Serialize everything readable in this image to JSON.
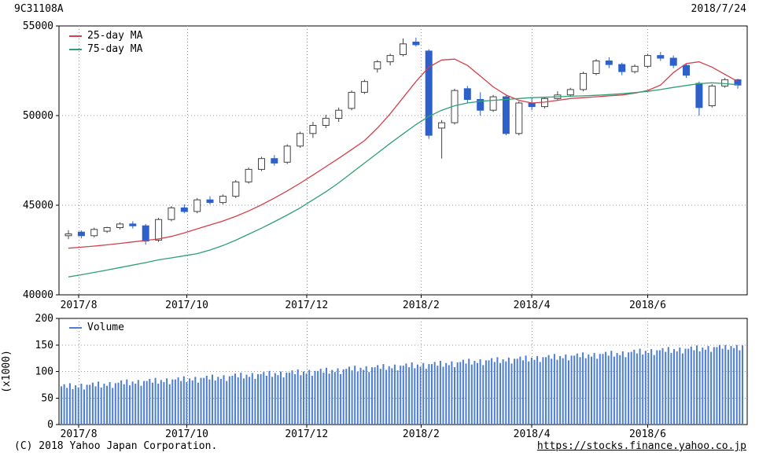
{
  "header": {
    "code": "9C31108A",
    "date": "2018/7/24"
  },
  "footer": {
    "copyright": "(C) 2018 Yahoo Japan Corporation.",
    "url": "https://stocks.finance.yahoo.co.jp"
  },
  "legend": {
    "ma25": "25-day MA",
    "ma75": "75-day MA",
    "volume": "Volume"
  },
  "colors": {
    "up_candle": "#ffffff",
    "candle_border": "#444444",
    "down_candle": "#2d60c8",
    "ma25": "#d2414c",
    "ma75": "#2fa173",
    "volume_bar": "#4d7ed2",
    "grid": "#999999",
    "axis": "#000000"
  },
  "chart_data": [
    {
      "type": "candlestick",
      "title": "Stock price with moving averages",
      "ylim": [
        40000,
        55000
      ],
      "y_ticks": [
        55000,
        50000,
        45000,
        40000
      ],
      "x_ticks": [
        "2017/8",
        "2017/10",
        "2017/12",
        "2018/2",
        "2018/4",
        "2018/6"
      ],
      "x_tick_weeks": [
        0.8,
        9.2,
        18.5,
        27.4,
        36.0,
        45.0
      ],
      "grid": true,
      "legend_position": "top-left",
      "candles": [
        [
          43300,
          43600,
          43100,
          43400
        ],
        [
          43500,
          43600,
          43150,
          43300
        ],
        [
          43300,
          43750,
          43200,
          43650
        ],
        [
          43550,
          43800,
          43450,
          43750
        ],
        [
          43750,
          44050,
          43650,
          43950
        ],
        [
          43950,
          44100,
          43700,
          43850
        ],
        [
          43850,
          43950,
          42800,
          43000
        ],
        [
          43050,
          44300,
          42950,
          44200
        ],
        [
          44200,
          44950,
          44100,
          44850
        ],
        [
          44850,
          45050,
          44550,
          44650
        ],
        [
          44650,
          45400,
          44550,
          45300
        ],
        [
          45300,
          45500,
          45050,
          45150
        ],
        [
          45150,
          45600,
          45050,
          45500
        ],
        [
          45500,
          46400,
          45400,
          46300
        ],
        [
          46300,
          47100,
          46200,
          47000
        ],
        [
          47000,
          47700,
          46900,
          47600
        ],
        [
          47600,
          47800,
          47200,
          47350
        ],
        [
          47400,
          48400,
          47300,
          48300
        ],
        [
          48300,
          49100,
          48200,
          49000
        ],
        [
          49000,
          49650,
          48750,
          49450
        ],
        [
          49450,
          50050,
          49300,
          49850
        ],
        [
          49850,
          50450,
          49650,
          50300
        ],
        [
          50400,
          51400,
          50300,
          51300
        ],
        [
          51300,
          52000,
          51200,
          51900
        ],
        [
          52600,
          53100,
          52400,
          53000
        ],
        [
          53000,
          53450,
          52800,
          53350
        ],
        [
          53400,
          54300,
          53300,
          54000
        ],
        [
          54100,
          54350,
          53850,
          53950
        ],
        [
          53600,
          53700,
          48700,
          48900
        ],
        [
          49300,
          49750,
          47600,
          49600
        ],
        [
          49600,
          51500,
          49500,
          51400
        ],
        [
          51500,
          51650,
          50700,
          50900
        ],
        [
          50900,
          51300,
          50000,
          50300
        ],
        [
          50300,
          51150,
          50200,
          51050
        ],
        [
          51050,
          51150,
          48900,
          49000
        ],
        [
          49000,
          50800,
          48900,
          50700
        ],
        [
          50700,
          51000,
          50300,
          50500
        ],
        [
          50500,
          51050,
          50400,
          50950
        ],
        [
          50950,
          51350,
          50850,
          51150
        ],
        [
          51150,
          51550,
          51050,
          51450
        ],
        [
          51450,
          52450,
          51350,
          52350
        ],
        [
          52350,
          53150,
          52250,
          53050
        ],
        [
          53050,
          53250,
          52650,
          52850
        ],
        [
          52850,
          52950,
          52250,
          52450
        ],
        [
          52450,
          52850,
          52350,
          52750
        ],
        [
          52750,
          53450,
          52650,
          53350
        ],
        [
          53350,
          53550,
          53050,
          53200
        ],
        [
          53200,
          53350,
          52650,
          52800
        ],
        [
          52800,
          52900,
          52100,
          52250
        ],
        [
          51800,
          51900,
          50000,
          50450
        ],
        [
          50550,
          51750,
          50450,
          51650
        ],
        [
          51650,
          52100,
          51550,
          52000
        ],
        [
          52000,
          52050,
          51500,
          51700
        ]
      ],
      "ma25": [
        42600,
        42660,
        42720,
        42790,
        42870,
        42950,
        43030,
        43120,
        43260,
        43450,
        43680,
        43900,
        44120,
        44380,
        44680,
        45020,
        45400,
        45800,
        46230,
        46680,
        47150,
        47620,
        48100,
        48600,
        49300,
        50100,
        51000,
        51900,
        52700,
        53100,
        53150,
        52800,
        52200,
        51600,
        51150,
        50850,
        50700,
        50750,
        50850,
        50950,
        51000,
        51050,
        51100,
        51150,
        51250,
        51400,
        51700,
        52400,
        52900,
        53000,
        52700,
        52300,
        51900
      ],
      "ma75": [
        41000,
        41120,
        41250,
        41380,
        41520,
        41660,
        41800,
        41950,
        42060,
        42180,
        42300,
        42500,
        42750,
        43050,
        43380,
        43720,
        44080,
        44450,
        44850,
        45300,
        45750,
        46250,
        46800,
        47350,
        47900,
        48450,
        48980,
        49500,
        49950,
        50300,
        50550,
        50700,
        50800,
        50850,
        50900,
        50950,
        51000,
        51020,
        51050,
        51080,
        51100,
        51130,
        51170,
        51220,
        51280,
        51350,
        51450,
        51570,
        51680,
        51780,
        51830,
        51780,
        51720
      ]
    },
    {
      "type": "bar",
      "name": "Volume",
      "ylabel": "(x1000)",
      "ylim": [
        0,
        200
      ],
      "y_ticks": [
        200,
        150,
        100,
        50,
        0
      ],
      "grid_ticks": [
        50,
        100,
        150
      ],
      "x_ticks": [
        "2017/8",
        "2017/10",
        "2017/12",
        "2018/2",
        "2018/4",
        "2018/6"
      ],
      "values": [
        72,
        76,
        69,
        78,
        67,
        74,
        70,
        77,
        66,
        75,
        75,
        79,
        72,
        81,
        70,
        77,
        73,
        80,
        69,
        78,
        79,
        83,
        76,
        85,
        74,
        81,
        77,
        84,
        73,
        82,
        82,
        86,
        79,
        88,
        77,
        84,
        80,
        87,
        76,
        85,
        85,
        89,
        82,
        91,
        80,
        87,
        83,
        90,
        79,
        88,
        88,
        92,
        85,
        94,
        83,
        90,
        86,
        93,
        82,
        91,
        92,
        96,
        89,
        98,
        87,
        94,
        90,
        97,
        86,
        95,
        95,
        99,
        92,
        101,
        90,
        97,
        93,
        100,
        89,
        98,
        98,
        102,
        95,
        104,
        93,
        100,
        96,
        103,
        92,
        101,
        101,
        105,
        98,
        107,
        96,
        103,
        99,
        106,
        95,
        104,
        105,
        109,
        102,
        111,
        100,
        107,
        103,
        110,
        99,
        108,
        108,
        112,
        105,
        114,
        103,
        110,
        106,
        113,
        102,
        111,
        111,
        115,
        108,
        117,
        106,
        113,
        109,
        116,
        105,
        114,
        114,
        118,
        111,
        120,
        109,
        116,
        112,
        119,
        108,
        117,
        118,
        122,
        115,
        124,
        113,
        120,
        116,
        123,
        112,
        121,
        121,
        125,
        118,
        127,
        116,
        123,
        119,
        126,
        115,
        124,
        124,
        128,
        121,
        130,
        119,
        126,
        122,
        129,
        118,
        127,
        127,
        131,
        124,
        133,
        122,
        129,
        125,
        132,
        121,
        130,
        130,
        134,
        127,
        136,
        125,
        132,
        128,
        135,
        124,
        133,
        133,
        137,
        130,
        139,
        128,
        135,
        131,
        138,
        127,
        136,
        137,
        141,
        134,
        143,
        132,
        139,
        135,
        142,
        131,
        140,
        140,
        144,
        137,
        146,
        135,
        142,
        138,
        145,
        134,
        143,
        143,
        147,
        140,
        149,
        138,
        145,
        141,
        148,
        137,
        146,
        146,
        150,
        143,
        150,
        141,
        148,
        144,
        150,
        140,
        149
      ]
    }
  ]
}
